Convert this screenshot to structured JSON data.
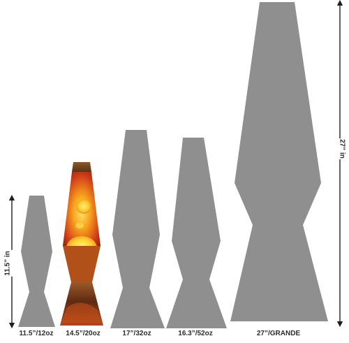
{
  "lamps": [
    {
      "size_label": "11.5”/12oz",
      "filled": false
    },
    {
      "size_label": "14.5”/20oz",
      "filled": true
    },
    {
      "size_label": "17”/32oz",
      "filled": false
    },
    {
      "size_label": "16.3”/52oz",
      "filled": false
    },
    {
      "size_label": "27”/GRANDE",
      "filled": false
    }
  ],
  "dimensions": {
    "left_label": "11.5” in",
    "right_label": "27” in"
  },
  "colors": {
    "silhouette": "#8f8f8f",
    "arrow": "#1e1e1e",
    "lava_glow": "#ffd23a",
    "lava_orange": "#f07a12",
    "lava_red": "#c62b10",
    "base_dark": "#6a3a1c"
  }
}
